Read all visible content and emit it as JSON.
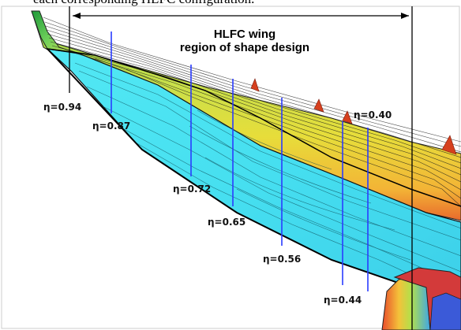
{
  "caption_text": "each corresponding HLFC configuration.",
  "region_label": {
    "line1": "HLFC wing",
    "line2": "region of shape design"
  },
  "stations": [
    {
      "label": "η=0.94"
    },
    {
      "label": "η=0.87"
    },
    {
      "label": "η=0.72"
    },
    {
      "label": "η=0.65"
    },
    {
      "label": "η=0.56"
    },
    {
      "label": "η=0.44"
    },
    {
      "label": "η=0.40"
    }
  ],
  "colors": {
    "station_line": "#2a3cff",
    "boundary_line": "#000000",
    "lower_surface": "#4fe6f2",
    "upper_surface": "#b8e04a"
  }
}
